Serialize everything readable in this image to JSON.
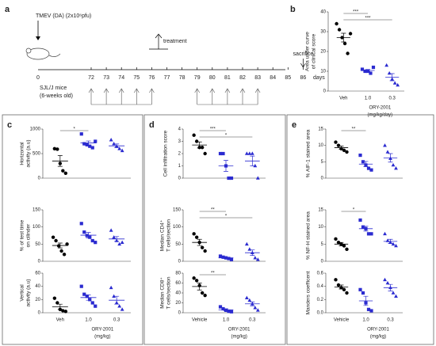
{
  "panel_labels": [
    "a",
    "b",
    "c",
    "d",
    "e"
  ],
  "timeline": {
    "title": "TMEV (DA) (2x10⁶pfu)",
    "start": "0",
    "treatment": "treatment",
    "end": "sacrifice",
    "unit": "days",
    "mice": [
      "SJL/J mice",
      "(6-weeks old)"
    ],
    "days": [
      72,
      73,
      74,
      75,
      76,
      77,
      78,
      79,
      80,
      81,
      82,
      83,
      84,
      85,
      86
    ]
  },
  "chart_data": [
    {
      "type": "dot",
      "ylabel": [
        "Area under curve",
        "of clinical score"
      ],
      "categories": [
        "Veh",
        "1.0",
        "0.3"
      ],
      "xlabel": [
        "ORY-2001",
        "(mg/kg/day)"
      ],
      "colors": [
        "#000000",
        "#2b2bd0",
        "#2b2bd0"
      ],
      "markers": [
        "circle",
        "square",
        "triangle"
      ],
      "points": [
        [
          34,
          31,
          27,
          24,
          19,
          29
        ],
        [
          11,
          10,
          10,
          9,
          12
        ],
        [
          13,
          9,
          6,
          4,
          3
        ]
      ],
      "mean": [
        27,
        10.4,
        7
      ],
      "sem": [
        2.2,
        0.5,
        1.8
      ],
      "ylim": [
        0,
        40
      ],
      "yticks": [
        0,
        10,
        20,
        30,
        40
      ],
      "significance": [
        {
          "from": 0,
          "to": 1,
          "label": "***"
        },
        {
          "from": 0,
          "to": 2,
          "label": "***"
        }
      ]
    },
    {
      "type": "dot",
      "ylabel": [
        "Horizontal",
        "activity (a.u)"
      ],
      "categories": [
        null,
        null,
        null
      ],
      "colors": [
        "#000000",
        "#2b2bd0",
        "#2b2bd0"
      ],
      "markers": [
        "circle",
        "square",
        "triangle"
      ],
      "points": [
        [
          600,
          590,
          300,
          150,
          100
        ],
        [
          900,
          700,
          680,
          650,
          620,
          750
        ],
        [
          780,
          700,
          650,
          600,
          560
        ]
      ],
      "mean": [
        350,
        717,
        658
      ],
      "sem": [
        110,
        40,
        38
      ],
      "ylim": [
        0,
        1000
      ],
      "yticks": [
        0,
        500,
        1000
      ],
      "significance": [
        {
          "from": 0,
          "to": 1,
          "label": "*"
        }
      ]
    },
    {
      "type": "dot",
      "ylabel": [
        "% of test time",
        "on cilinder"
      ],
      "categories": [
        null,
        null,
        null
      ],
      "colors": [
        "#000000",
        "#2b2bd0",
        "#2b2bd0"
      ],
      "markers": [
        "circle",
        "square",
        "triangle"
      ],
      "points": [
        [
          70,
          60,
          45,
          30,
          20,
          50
        ],
        [
          110,
          85,
          75,
          70,
          60,
          55
        ],
        [
          90,
          70,
          60,
          50,
          55
        ]
      ],
      "mean": [
        46,
        76,
        65
      ],
      "sem": [
        7,
        8,
        7
      ],
      "ylim": [
        0,
        150
      ],
      "yticks": [
        0,
        50,
        100,
        150
      ],
      "significance": []
    },
    {
      "type": "dot",
      "ylabel": [
        "Vertical",
        "activity (a.u)"
      ],
      "categories": [
        "Veh",
        "1.0",
        "0.3"
      ],
      "xlabel": [
        "ORY-2001",
        "(mg/kg)"
      ],
      "colors": [
        "#000000",
        "#2b2bd0",
        "#2b2bd0"
      ],
      "markers": [
        "circle",
        "square",
        "triangle"
      ],
      "points": [
        [
          22,
          15,
          5,
          3,
          2
        ],
        [
          40,
          28,
          25,
          20,
          15,
          10
        ],
        [
          38,
          25,
          15,
          10,
          5
        ]
      ],
      "mean": [
        9,
        23,
        19
      ],
      "sem": [
        4,
        4,
        6
      ],
      "ylim": [
        0,
        60
      ],
      "yticks": [
        0,
        20,
        40,
        60
      ],
      "significance": []
    },
    {
      "type": "dot",
      "ylabel": [
        "Cell infiltration score"
      ],
      "categories": [
        null,
        null,
        null
      ],
      "colors": [
        "#000000",
        "#2b2bd0",
        "#2b2bd0"
      ],
      "markers": [
        "circle",
        "square",
        "triangle"
      ],
      "points": [
        [
          3.5,
          3,
          2.5,
          2.5,
          2
        ],
        [
          2,
          2,
          1,
          0,
          0
        ],
        [
          2,
          2,
          2,
          1,
          0
        ]
      ],
      "mean": [
        2.7,
        1,
        1.4
      ],
      "sem": [
        0.25,
        0.45,
        0.4
      ],
      "ylim": [
        0,
        4
      ],
      "yticks": [
        0,
        1,
        2,
        3,
        4
      ],
      "significance": [
        {
          "from": 0,
          "to": 1,
          "label": "***"
        },
        {
          "from": 0,
          "to": 2,
          "label": "*"
        }
      ]
    },
    {
      "type": "dot",
      "ylabel": [
        "Median CD4⁺",
        "T cells/section"
      ],
      "categories": [
        null,
        null,
        null
      ],
      "colors": [
        "#000000",
        "#2b2bd0",
        "#2b2bd0"
      ],
      "markers": [
        "circle",
        "square",
        "triangle"
      ],
      "points": [
        [
          80,
          70,
          55,
          40,
          30
        ],
        [
          15,
          12,
          10,
          8,
          5
        ],
        [
          50,
          35,
          25,
          10,
          5
        ]
      ],
      "mean": [
        55,
        10,
        25
      ],
      "sem": [
        9,
        2,
        8
      ],
      "ylim": [
        0,
        150
      ],
      "yticks": [
        0,
        50,
        100,
        150
      ],
      "significance": [
        {
          "from": 0,
          "to": 1,
          "label": "**"
        },
        {
          "from": 0,
          "to": 2,
          "label": "*"
        }
      ]
    },
    {
      "type": "dot",
      "ylabel": [
        "Median CD8⁺",
        "T cells/section"
      ],
      "categories": [
        "Vehicle",
        "1.0",
        "0.3"
      ],
      "xlabel": [
        "ORY-2001",
        "(mg/kg)"
      ],
      "colors": [
        "#000000",
        "#2b2bd0",
        "#2b2bd0"
      ],
      "markers": [
        "circle",
        "square",
        "triangle"
      ],
      "points": [
        [
          70,
          65,
          55,
          40,
          35
        ],
        [
          12,
          8,
          5,
          3,
          2
        ],
        [
          30,
          25,
          18,
          10,
          5
        ]
      ],
      "mean": [
        53,
        6,
        18
      ],
      "sem": [
        7,
        2,
        4
      ],
      "ylim": [
        0,
        80
      ],
      "yticks": [
        0,
        20,
        40,
        60,
        80
      ],
      "significance": [
        {
          "from": 0,
          "to": 1,
          "label": "**"
        }
      ]
    },
    {
      "type": "dot",
      "ylabel": [
        "% AIF-1 stained area"
      ],
      "categories": [
        null,
        null,
        null
      ],
      "colors": [
        "#000000",
        "#2b2bd0",
        "#2b2bd0"
      ],
      "markers": [
        "circle",
        "square",
        "triangle"
      ],
      "points": [
        [
          11,
          10,
          9,
          8.5,
          8
        ],
        [
          7,
          5,
          4,
          3,
          2.5
        ],
        [
          10,
          8,
          6,
          4,
          3
        ]
      ],
      "mean": [
        9.3,
        4.3,
        6.2
      ],
      "sem": [
        0.5,
        0.8,
        1.3
      ],
      "ylim": [
        0,
        15
      ],
      "yticks": [
        0,
        5,
        10,
        15
      ],
      "significance": [
        {
          "from": 0,
          "to": 1,
          "label": "**"
        }
      ]
    },
    {
      "type": "dot",
      "ylabel": [
        "% NF-H stained area"
      ],
      "categories": [
        null,
        null,
        null
      ],
      "colors": [
        "#000000",
        "#2b2bd0",
        "#2b2bd0"
      ],
      "markers": [
        "circle",
        "square",
        "triangle"
      ],
      "points": [
        [
          6.5,
          5.5,
          5,
          4.5,
          3.5
        ],
        [
          12,
          10,
          9.5,
          8,
          8
        ],
        [
          8,
          6,
          5.5,
          5,
          4.5
        ]
      ],
      "mean": [
        5,
        9.5,
        5.8
      ],
      "sem": [
        0.5,
        0.7,
        0.6
      ],
      "ylim": [
        0,
        15
      ],
      "yticks": [
        0,
        5,
        10,
        15
      ],
      "significance": [
        {
          "from": 0,
          "to": 1,
          "label": "*"
        }
      ]
    },
    {
      "type": "dot",
      "ylabel": [
        "Manders coefficent"
      ],
      "categories": [
        "Vehicle",
        "1.0",
        "0.3"
      ],
      "xlabel": [
        "ORY-2001",
        "(mg/kg)"
      ],
      "colors": [
        "#000000",
        "#2b2bd0",
        "#2b2bd0"
      ],
      "markers": [
        "circle",
        "square",
        "triangle"
      ],
      "points": [
        [
          0.5,
          0.42,
          0.38,
          0.35,
          0.3
        ],
        [
          0.35,
          0.3,
          0.15,
          0.05,
          0.03
        ],
        [
          0.5,
          0.45,
          0.38,
          0.3,
          0.25
        ]
      ],
      "mean": [
        0.39,
        0.18,
        0.38
      ],
      "sem": [
        0.03,
        0.07,
        0.05
      ],
      "ylim": [
        0,
        0.6
      ],
      "yticks": [
        {
          "value": 0,
          "label": "0.0"
        },
        0.2,
        0.4,
        0.6
      ],
      "significance": []
    }
  ]
}
